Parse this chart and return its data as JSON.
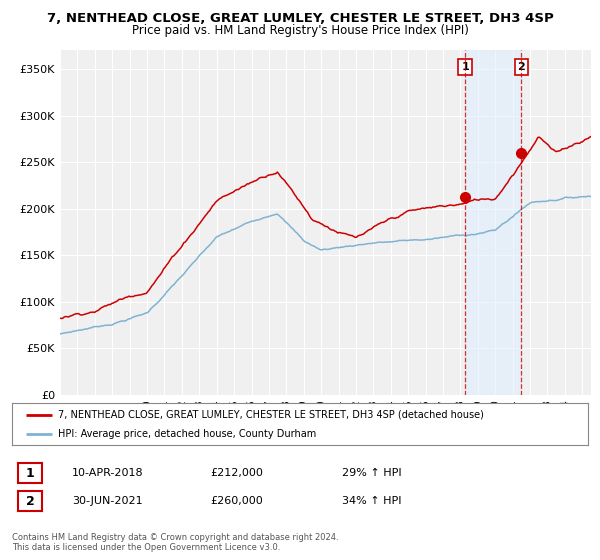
{
  "title_line1": "7, NENTHEAD CLOSE, GREAT LUMLEY, CHESTER LE STREET, DH3 4SP",
  "title_line2": "Price paid vs. HM Land Registry's House Price Index (HPI)",
  "ylabel_ticks": [
    "£0",
    "£50K",
    "£100K",
    "£150K",
    "£200K",
    "£250K",
    "£300K",
    "£350K"
  ],
  "ytick_values": [
    0,
    50000,
    100000,
    150000,
    200000,
    250000,
    300000,
    350000
  ],
  "ylim": [
    0,
    370000
  ],
  "xlim_start": 1995.0,
  "xlim_end": 2025.5,
  "red_line_color": "#cc0000",
  "blue_line_color": "#7fb3d3",
  "sale1_date": "10-APR-2018",
  "sale1_price": 212000,
  "sale1_pct": "29%",
  "sale1_x": 2018.27,
  "sale2_date": "30-JUN-2021",
  "sale2_price": 260000,
  "sale2_pct": "34%",
  "sale2_x": 2021.5,
  "legend_label_red": "7, NENTHEAD CLOSE, GREAT LUMLEY, CHESTER LE STREET, DH3 4SP (detached house)",
  "legend_label_blue": "HPI: Average price, detached house, County Durham",
  "footer_line1": "Contains HM Land Registry data © Crown copyright and database right 2024.",
  "footer_line2": "This data is licensed under the Open Government Licence v3.0.",
  "background_color": "#ffffff",
  "plot_bg_color": "#f0f0f0",
  "grid_color": "#ffffff",
  "shade_color": "#ddeeff"
}
